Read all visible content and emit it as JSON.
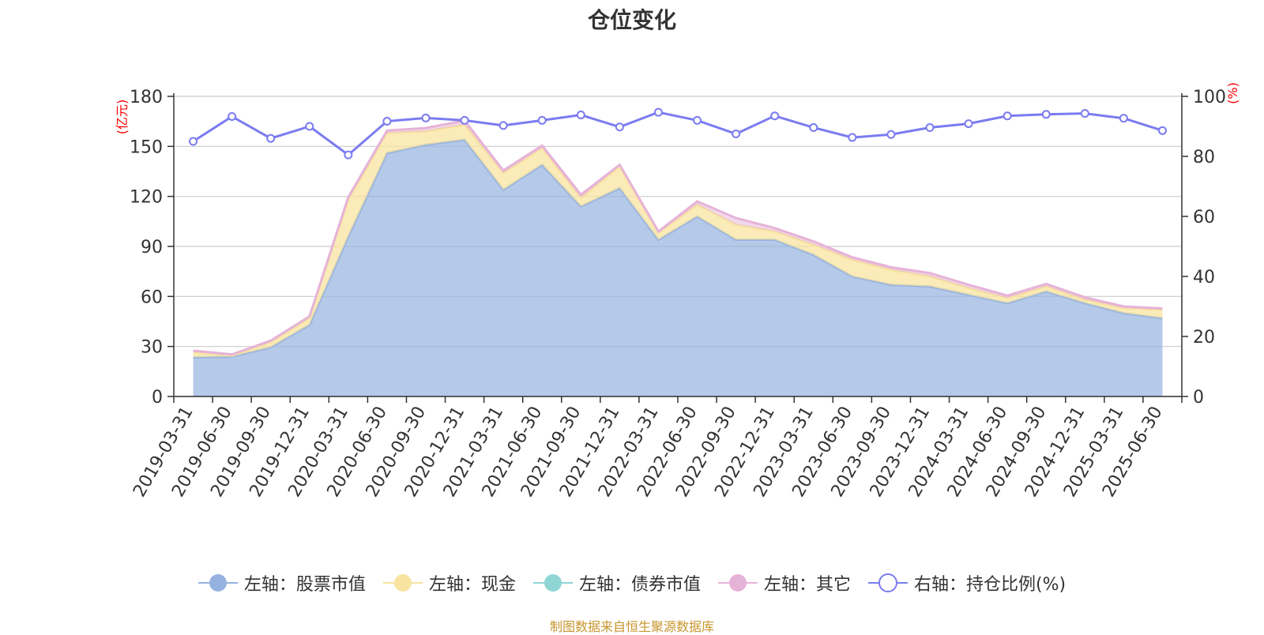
{
  "chart_data": {
    "type": "area",
    "title": "仓位变化",
    "left_axis_unit": "(亿元)",
    "right_axis_unit": "(%)",
    "categories": [
      "2019-03-31",
      "2019-06-30",
      "2019-09-30",
      "2019-12-31",
      "2020-03-31",
      "2020-06-30",
      "2020-09-30",
      "2020-12-31",
      "2021-03-31",
      "2021-06-30",
      "2021-09-30",
      "2021-12-31",
      "2022-03-31",
      "2022-06-30",
      "2022-09-30",
      "2022-12-31",
      "2023-03-31",
      "2023-06-30",
      "2023-09-30",
      "2023-12-31",
      "2024-03-31",
      "2024-06-30",
      "2024-09-30",
      "2024-12-31",
      "2025-03-31",
      "2025-06-30"
    ],
    "left_ylim": [
      0,
      180
    ],
    "left_yticks": [
      "0",
      "30",
      "60",
      "90",
      "120",
      "150",
      "180"
    ],
    "right_ylim": [
      0,
      100
    ],
    "right_yticks": [
      "0",
      "20",
      "40",
      "60",
      "80",
      "100"
    ],
    "grid": true,
    "legend_position": "bottom",
    "series": [
      {
        "name": "左轴：股票市值",
        "axis": "left",
        "color": "#96b2e0",
        "values": [
          23.5,
          24,
          29.5,
          43,
          96,
          146,
          151,
          154,
          124,
          139,
          114,
          125,
          94,
          108,
          94,
          94,
          85,
          72,
          67,
          66,
          61,
          56,
          63,
          56,
          50,
          47
        ]
      },
      {
        "name": "左轴：现金",
        "axis": "left",
        "color": "#f8e4a0",
        "values": [
          3,
          0.5,
          3,
          4,
          22,
          12,
          8,
          9,
          10,
          10,
          5,
          13,
          4,
          7,
          9,
          5,
          6,
          10,
          9,
          6,
          4,
          3,
          3,
          2,
          3,
          5
        ]
      },
      {
        "name": "左轴：债券市值",
        "axis": "left",
        "color": "#8fd5d4",
        "values": [
          0,
          0,
          0,
          0,
          0,
          0,
          0,
          0,
          0,
          0,
          0,
          0,
          0,
          0,
          0,
          0,
          0,
          0,
          0,
          0,
          0,
          0,
          0,
          0,
          0,
          0
        ]
      },
      {
        "name": "左轴：其它",
        "axis": "left",
        "color": "#e6b3d8",
        "values": [
          1,
          0.7,
          1,
          1,
          1.5,
          1.5,
          2,
          2.5,
          1.5,
          1.5,
          2,
          1,
          1,
          2,
          4,
          2,
          2,
          1.5,
          1.5,
          2,
          2,
          1.5,
          1.5,
          1.5,
          1,
          0.8
        ]
      },
      {
        "name": "右轴：持仓比例(%)",
        "axis": "right",
        "color": "#7b7bf0",
        "values": [
          85,
          93.3,
          86,
          90,
          80.5,
          91.7,
          92.8,
          92,
          90.3,
          92,
          93.8,
          89.8,
          94.7,
          92,
          87.5,
          93.5,
          89.6,
          86.3,
          87.3,
          89.6,
          90.9,
          93.5,
          94,
          94.3,
          92.7,
          88.6
        ]
      }
    ]
  },
  "source_note": "制图数据来自恒生聚源数据库",
  "source_note_color": "#c8962e"
}
